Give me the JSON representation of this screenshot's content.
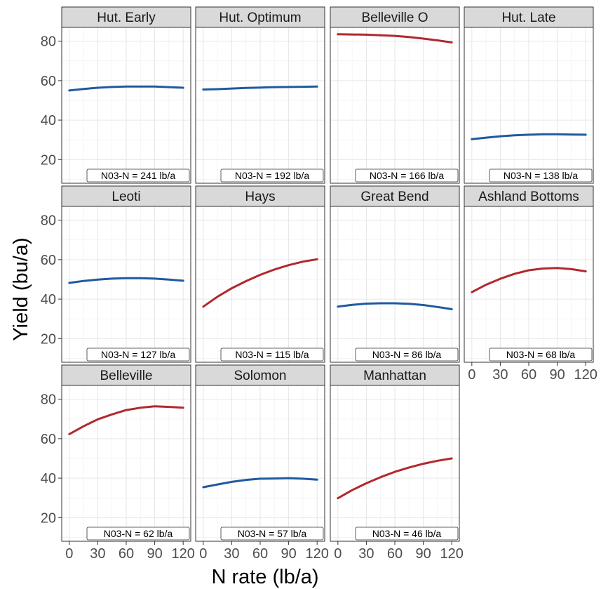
{
  "chart_data": {
    "type": "line",
    "xlabel": "N rate (lb/a)",
    "ylabel": "Yield (bu/a)",
    "xlim": [
      -8,
      128
    ],
    "ylim": [
      8,
      87
    ],
    "x_ticks": [
      0,
      30,
      60,
      90,
      120
    ],
    "y_ticks": [
      20,
      40,
      60,
      80
    ],
    "x_tick_labels": [
      "0",
      "30",
      "60",
      "90",
      "120"
    ],
    "y_tick_labels": [
      "20",
      "40",
      "60",
      "80"
    ],
    "grid": true,
    "colors": {
      "increase": "#b2282e",
      "flat": "#1f5aa0",
      "strip": "#d9d9d9"
    },
    "x": [
      0,
      15,
      30,
      45,
      60,
      75,
      90,
      105,
      120
    ],
    "panels": [
      {
        "title": "Hut. Early",
        "label": "N03-N = 241 lb/a",
        "trend": "flat",
        "y": [
          55.0,
          55.8,
          56.4,
          56.8,
          57.0,
          57.0,
          57.0,
          56.7,
          56.4
        ]
      },
      {
        "title": "Hut. Optimum",
        "label": "N03-N = 192 lb/a",
        "trend": "flat",
        "y": [
          55.5,
          55.7,
          56.0,
          56.3,
          56.5,
          56.7,
          56.8,
          56.9,
          57.0
        ]
      },
      {
        "title": "Belleville O",
        "label": "N03-N = 166 lb/a",
        "trend": "increase",
        "y": [
          83.5,
          83.4,
          83.3,
          83.0,
          82.7,
          82.1,
          81.3,
          80.4,
          79.4
        ]
      },
      {
        "title": "Hut. Late",
        "label": "N03-N = 138 lb/a",
        "trend": "flat",
        "y": [
          30.3,
          31.1,
          31.8,
          32.3,
          32.6,
          32.8,
          32.8,
          32.7,
          32.6
        ]
      },
      {
        "title": "Leoti",
        "label": "N03-N = 127 lb/a",
        "trend": "flat",
        "y": [
          48.2,
          49.2,
          49.9,
          50.4,
          50.6,
          50.6,
          50.4,
          49.9,
          49.3
        ]
      },
      {
        "title": "Hays",
        "label": "N03-N = 115 lb/a",
        "trend": "increase",
        "y": [
          36.2,
          41.2,
          45.5,
          49.1,
          52.3,
          55.0,
          57.2,
          59.0,
          60.2
        ]
      },
      {
        "title": "Great Bend",
        "label": "N03-N = 86 lb/a",
        "trend": "flat",
        "y": [
          36.2,
          37.1,
          37.7,
          37.9,
          37.9,
          37.6,
          37.0,
          36.0,
          34.9
        ]
      },
      {
        "title": "Ashland Bottoms",
        "label": "N03-N = 68 lb/a",
        "trend": "increase",
        "y": [
          43.5,
          47.3,
          50.3,
          52.8,
          54.6,
          55.5,
          55.8,
          55.2,
          54.1
        ]
      },
      {
        "title": "Belleville",
        "label": "N03-N = 62 lb/a",
        "trend": "increase",
        "y": [
          62.3,
          66.3,
          69.8,
          72.3,
          74.5,
          75.7,
          76.4,
          76.1,
          75.7
        ]
      },
      {
        "title": "Solomon",
        "label": "N03-N = 57 lb/a",
        "trend": "flat",
        "y": [
          35.4,
          36.8,
          38.1,
          39.1,
          39.7,
          39.8,
          40.0,
          39.7,
          39.2
        ]
      },
      {
        "title": "Manhattan",
        "label": "N03-N = 46 lb/a",
        "trend": "increase",
        "y": [
          29.8,
          33.9,
          37.4,
          40.5,
          43.2,
          45.4,
          47.3,
          48.8,
          50.0
        ]
      }
    ]
  }
}
